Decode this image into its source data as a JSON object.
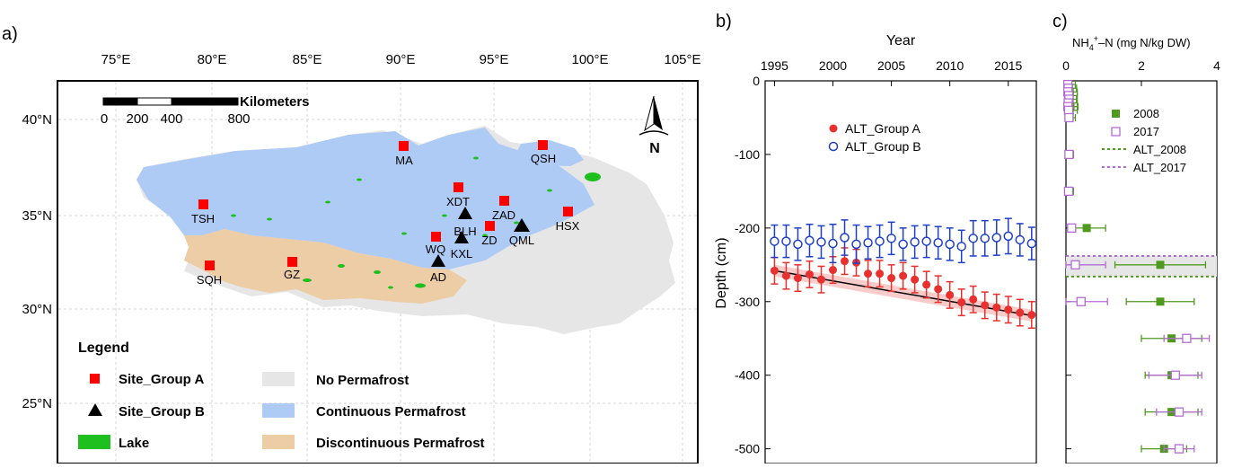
{
  "panel_a": {
    "label": "a)",
    "lon_ticks": [
      "75°E",
      "80°E",
      "85°E",
      "90°E",
      "95°E",
      "100°E",
      "105°E"
    ],
    "lat_ticks": [
      "40°N",
      "35°N",
      "30°N",
      "25°N"
    ],
    "scale_title": "Kilometers",
    "scale_ticks": [
      "0",
      "200",
      "400",
      "800"
    ],
    "north_label": "N",
    "legend_title": "Legend",
    "legend_items": {
      "site_a": "Site_Group A",
      "site_b": "Site_Group B",
      "lake": "Lake",
      "no_pf": "No Permafrost",
      "cont_pf": "Continuous Permafrost",
      "discont_pf": "Discontinuous Permafrost"
    },
    "colors": {
      "site_a": "#ff0000",
      "site_b": "#000000",
      "lake": "#1fbf1f",
      "no_pf": "#e6e6e6",
      "cont_pf": "#aecbf5",
      "discont_pf": "#eccda6"
    },
    "sites_group_a": [
      "MA",
      "QSH",
      "XDT",
      "TSH",
      "ZAD",
      "HSX",
      "ZD",
      "WQ",
      "SQH",
      "GZ"
    ],
    "sites_group_b": [
      "BLH",
      "QML",
      "KXL",
      "AD"
    ]
  },
  "chart_data": [
    {
      "type": "scatter",
      "panel": "b)",
      "xlabel": "Year",
      "ylabel": "Depth (cm)",
      "xlim": [
        1994.2,
        2017.4
      ],
      "ylim": [
        -520,
        0
      ],
      "x_ticks": [
        "1995",
        "2000",
        "2005",
        "2010",
        "2015"
      ],
      "y_ticks": [
        "0",
        "-100",
        "-200",
        "-300",
        "-400",
        "-500"
      ],
      "x_tick_values": [
        1995,
        2000,
        2005,
        2010,
        2015
      ],
      "y_tick_values": [
        0,
        -100,
        -200,
        -300,
        -400,
        -500
      ],
      "x": [
        1995,
        1996,
        1997,
        1998,
        1999,
        2000,
        2001,
        2002,
        2003,
        2004,
        2005,
        2006,
        2007,
        2008,
        2009,
        2010,
        2011,
        2012,
        2013,
        2014,
        2015,
        2016,
        2017
      ],
      "series": [
        {
          "name": "ALT_Group A",
          "color": "#e8312f",
          "marker": "filled-circle",
          "values": [
            -258,
            -265,
            -268,
            -263,
            -270,
            -257,
            -245,
            -247,
            -262,
            -262,
            -268,
            -265,
            -270,
            -277,
            -283,
            -291,
            -301,
            -297,
            -305,
            -308,
            -311,
            -315,
            -318
          ],
          "errors": [
            18,
            18,
            18,
            18,
            18,
            18,
            18,
            18,
            18,
            18,
            18,
            18,
            18,
            18,
            18,
            18,
            18,
            18,
            18,
            18,
            18,
            18,
            18
          ]
        },
        {
          "name": "ALT_Group B",
          "color": "#1f3fc8",
          "marker": "open-circle",
          "values": [
            -218,
            -218,
            -222,
            -217,
            -219,
            -221,
            -213,
            -222,
            -220,
            -218,
            -214,
            -222,
            -219,
            -218,
            -220,
            -222,
            -225,
            -214,
            -214,
            -213,
            -211,
            -216,
            -221
          ],
          "errors": [
            22,
            22,
            22,
            22,
            22,
            26,
            24,
            26,
            22,
            22,
            22,
            22,
            22,
            22,
            22,
            22,
            22,
            24,
            24,
            24,
            24,
            22,
            22
          ]
        }
      ],
      "trend_line": {
        "from": [
          1995,
          -258
        ],
        "to": [
          2017,
          -319
        ],
        "band": 8
      }
    },
    {
      "type": "scatter",
      "panel": "c)",
      "xlabel_parts": {
        "base": "NH",
        "sub": "4",
        "sup": "+",
        "rest": "–N (mg N/kg DW)"
      },
      "xlim": [
        0,
        4
      ],
      "ylim": [
        -520,
        0
      ],
      "x_ticks": [
        "0",
        "2",
        "4"
      ],
      "x_tick_values": [
        0,
        2,
        4
      ],
      "depths": [
        -5,
        -10,
        -15,
        -20,
        -25,
        -30,
        -35,
        -40,
        -50,
        -100,
        -150,
        -200,
        -250,
        -300,
        -350,
        -400,
        -450,
        -500
      ],
      "series": [
        {
          "name": "2008",
          "color": "#4f9a1e",
          "marker": "filled-square",
          "values": [
            0.05,
            0.08,
            0.1,
            0.1,
            0.08,
            0.1,
            0.12,
            0.1,
            0.1,
            0.1,
            0.1,
            0.55,
            2.5,
            2.5,
            2.8,
            2.8,
            2.8,
            2.6
          ],
          "errors": [
            0.2,
            0.2,
            0.2,
            0.2,
            0.2,
            0.2,
            0.2,
            0.2,
            0.15,
            0.1,
            0.1,
            0.5,
            1.2,
            0.9,
            0.8,
            0.7,
            0.7,
            0.6
          ]
        },
        {
          "name": "2017",
          "color": "#b46bd6",
          "marker": "open-square",
          "values": [
            0.05,
            0.06,
            0.05,
            0.07,
            0.08,
            0.06,
            0.05,
            0.07,
            0.08,
            0.08,
            0.07,
            0.15,
            0.25,
            0.4,
            3.2,
            2.9,
            3.0,
            3.0
          ],
          "errors": [
            0.1,
            0.1,
            0.1,
            0.1,
            0.1,
            0.1,
            0.1,
            0.1,
            0.1,
            0.08,
            0.05,
            0.05,
            0.8,
            0.7,
            0.6,
            0.7,
            0.6,
            0.4
          ]
        }
      ],
      "alt_lines": [
        {
          "name": "ALT_2008",
          "color": "#4f9a1e",
          "depth": -266
        },
        {
          "name": "ALT_2017",
          "color": "#b46bd6",
          "depth": -238
        }
      ]
    }
  ]
}
